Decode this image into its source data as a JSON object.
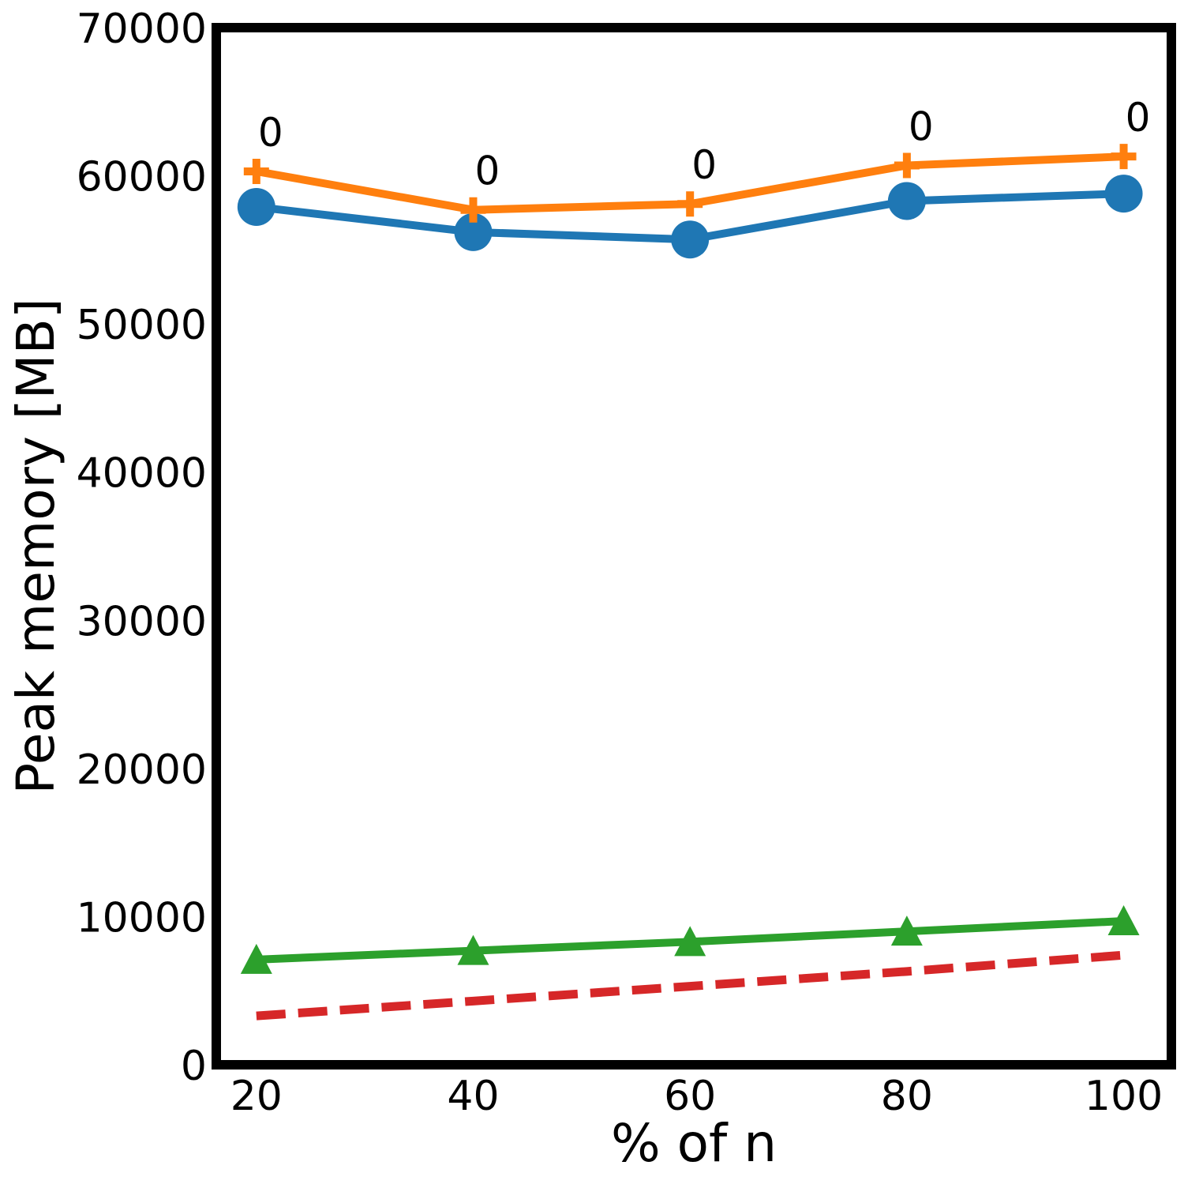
{
  "chart_data": {
    "type": "line",
    "title": "",
    "xlabel": "% of n",
    "ylabel": "Peak memory [MB]",
    "x": [
      20,
      40,
      60,
      80,
      100
    ],
    "xlim": [
      16.3,
      104.4
    ],
    "ylim": [
      0,
      70000
    ],
    "xticks": [
      20,
      40,
      60,
      80,
      100
    ],
    "yticks": [
      0,
      10000,
      20000,
      30000,
      40000,
      50000,
      60000,
      70000
    ],
    "grid": false,
    "legend": "none",
    "series": [
      {
        "name": "series-blue",
        "color": "#1f77b4",
        "marker": "circle",
        "dash": "solid",
        "values": [
          57900,
          56200,
          55700,
          58300,
          58800
        ]
      },
      {
        "name": "series-orange",
        "color": "#ff7f0e",
        "marker": "plus",
        "dash": "solid",
        "values": [
          60300,
          57700,
          58100,
          60700,
          61300
        ],
        "annotations": [
          "0",
          "0",
          "0",
          "0",
          "0"
        ]
      },
      {
        "name": "series-green",
        "color": "#2ca02c",
        "marker": "triangle",
        "dash": "solid",
        "values": [
          7100,
          7700,
          8300,
          9000,
          9700
        ]
      },
      {
        "name": "series-red",
        "color": "#d62728",
        "marker": "none",
        "dash": "dashed",
        "values": [
          3300,
          4300,
          5300,
          6300,
          7400
        ]
      }
    ]
  }
}
